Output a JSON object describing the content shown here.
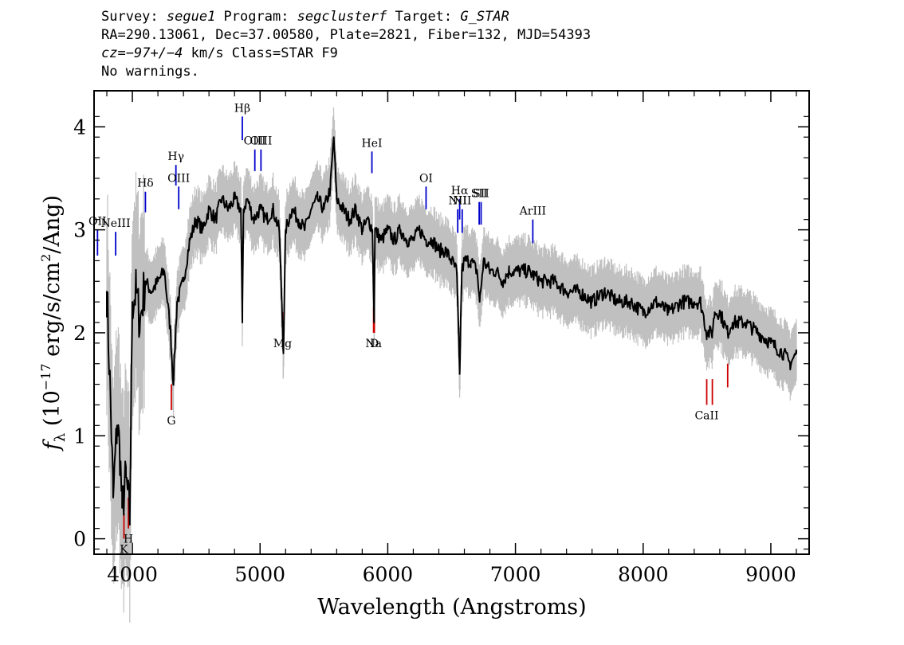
{
  "header": {
    "survey_label": "Survey: ",
    "survey": "segue1",
    "program_label": " Program: ",
    "program": "segclusterf",
    "target_label": " Target: ",
    "target": "G_STAR",
    "line2": "RA=290.13061, Dec=37.00580, Plate=2821, Fiber=132, MJD=54393",
    "cz_label": "cz",
    "cz_eq": "=",
    "cz_value": "−97+/−4",
    "cz_rest": " km/s Class=STAR F9",
    "line4": "No warnings."
  },
  "chart_data": {
    "type": "line",
    "title": "",
    "xlabel": "Wavelength (Angstroms)",
    "ylabel_prefix": "f",
    "ylabel_sub": "λ",
    "ylabel_main": " (10",
    "ylabel_exp": "−17",
    "ylabel_rest": " erg/s/cm",
    "ylabel_exp2": "2",
    "ylabel_end": "/Ang)",
    "xlim": [
      3700,
      9300
    ],
    "ylim": [
      -0.15,
      4.35
    ],
    "x_ticks": [
      4000,
      5000,
      6000,
      7000,
      8000,
      9000
    ],
    "x_tick_labels": [
      "4000",
      "5000",
      "6000",
      "7000",
      "8000",
      "9000"
    ],
    "y_ticks": [
      0,
      1,
      2,
      3,
      4
    ],
    "y_tick_labels": [
      "0",
      "1",
      "2",
      "3",
      "4"
    ],
    "series": [
      {
        "name": "",
        "color": "#000000",
        "x": [
          3800,
          3830,
          3850,
          3880,
          3900,
          3920,
          3950,
          3980,
          4000,
          4030,
          4060,
          4100,
          4150,
          4200,
          4250,
          4300,
          4320,
          4350,
          4400,
          4450,
          4500,
          4550,
          4600,
          4650,
          4700,
          4750,
          4800,
          4850,
          4861,
          4870,
          4900,
          4950,
          5000,
          5050,
          5100,
          5150,
          5170,
          5183,
          5200,
          5250,
          5300,
          5350,
          5400,
          5450,
          5500,
          5550,
          5577,
          5600,
          5650,
          5700,
          5750,
          5800,
          5850,
          5880,
          5893,
          5900,
          5950,
          6000,
          6050,
          6100,
          6150,
          6200,
          6250,
          6300,
          6350,
          6400,
          6450,
          6500,
          6540,
          6563,
          6580,
          6600,
          6650,
          6700,
          6720,
          6750,
          6800,
          6850,
          6900,
          6950,
          7000,
          7100,
          7200,
          7300,
          7400,
          7500,
          7600,
          7700,
          7800,
          7900,
          8000,
          8100,
          8200,
          8300,
          8400,
          8450,
          8498,
          8542,
          8560,
          8600,
          8662,
          8700,
          8800,
          8900,
          9000,
          9100,
          9150,
          9200
        ],
        "y": [
          2.4,
          1.3,
          0.4,
          1.1,
          0.9,
          0.3,
          0.6,
          0.2,
          2.3,
          2.4,
          2.1,
          2.5,
          2.4,
          2.5,
          2.6,
          2.0,
          1.5,
          2.3,
          2.5,
          2.9,
          3.1,
          3.0,
          3.2,
          3.1,
          3.3,
          3.2,
          3.3,
          3.2,
          2.1,
          3.2,
          3.3,
          3.1,
          3.2,
          3.1,
          3.2,
          3.0,
          2.3,
          1.8,
          3.0,
          3.2,
          3.1,
          3.0,
          3.2,
          3.3,
          3.2,
          3.4,
          3.9,
          3.3,
          3.2,
          3.1,
          3.2,
          3.0,
          3.1,
          3.0,
          2.1,
          3.0,
          2.9,
          3.0,
          2.9,
          3.0,
          2.9,
          2.9,
          3.0,
          2.9,
          2.9,
          2.8,
          2.8,
          2.7,
          2.6,
          1.6,
          2.6,
          2.7,
          2.7,
          2.6,
          2.3,
          2.7,
          2.6,
          2.6,
          2.5,
          2.6,
          2.6,
          2.6,
          2.5,
          2.5,
          2.4,
          2.4,
          2.3,
          2.4,
          2.3,
          2.3,
          2.2,
          2.3,
          2.2,
          2.3,
          2.3,
          2.3,
          2.0,
          2.0,
          2.2,
          2.2,
          2.0,
          2.1,
          2.1,
          2.0,
          1.9,
          1.8,
          1.7,
          1.8
        ]
      }
    ],
    "error_color": "#c0c0c0",
    "emission_color": "#0000cc",
    "absorption_color": "#cc0000",
    "emission_lines": [
      {
        "label": "OII",
        "x": 3727,
        "ystart": 2.75,
        "yend": 3.0
      },
      {
        "label": "NeIII",
        "x": 3869,
        "ystart": 2.75,
        "yend": 2.98
      },
      {
        "label": "Hδ",
        "x": 4102,
        "ystart": 3.17,
        "yend": 3.37
      },
      {
        "label": "Hγ",
        "x": 4341,
        "ystart": 3.43,
        "yend": 3.63
      },
      {
        "label": "OIII",
        "x": 4363,
        "ystart": 3.2,
        "yend": 3.42
      },
      {
        "label": "Hβ",
        "x": 4861,
        "ystart": 3.87,
        "yend": 4.1
      },
      {
        "label": "OIII",
        "x": 4959,
        "ystart": 3.57,
        "yend": 3.78
      },
      {
        "label": "OIII",
        "x": 5007,
        "ystart": 3.57,
        "yend": 3.78
      },
      {
        "label": "HeI",
        "x": 5876,
        "ystart": 3.55,
        "yend": 3.76
      },
      {
        "label": "OI",
        "x": 6300,
        "ystart": 3.2,
        "yend": 3.42
      },
      {
        "label": "NII",
        "x": 6548,
        "ystart": 2.97,
        "yend": 3.2
      },
      {
        "label": "Hα",
        "x": 6563,
        "ystart": 3.1,
        "yend": 3.3
      },
      {
        "label": "NII",
        "x": 6583,
        "ystart": 2.97,
        "yend": 3.2
      },
      {
        "label": "SII",
        "x": 6716,
        "ystart": 3.05,
        "yend": 3.27
      },
      {
        "label": "SII",
        "x": 6731,
        "ystart": 3.05,
        "yend": 3.27
      },
      {
        "label": "ArIII",
        "x": 7136,
        "ystart": 2.87,
        "yend": 3.1
      }
    ],
    "absorption_lines": [
      {
        "label": "K",
        "x": 3934,
        "ystart": 0.0,
        "yend": 0.25
      },
      {
        "label": "H",
        "x": 3969,
        "ystart": 0.1,
        "yend": 0.4
      },
      {
        "label": "G",
        "x": 4305,
        "ystart": 1.25,
        "yend": 1.5
      },
      {
        "label": "Mg",
        "x": 5176,
        "ystart": 2.0,
        "yend": 2.2
      },
      {
        "label": "Na",
        "x": 5889,
        "ystart": 2.0,
        "yend": 2.25
      },
      {
        "label": "D",
        "x": 5895,
        "ystart": 2.0,
        "yend": 2.25
      },
      {
        "label": "CaII",
        "x": 8498,
        "ystart": 1.3,
        "yend": 1.55
      },
      {
        "label": "",
        "x": 8542,
        "ystart": 1.3,
        "yend": 1.55
      },
      {
        "label": "",
        "x": 8662,
        "ystart": 1.47,
        "yend": 1.7
      }
    ],
    "grid": false,
    "legend": "none"
  }
}
